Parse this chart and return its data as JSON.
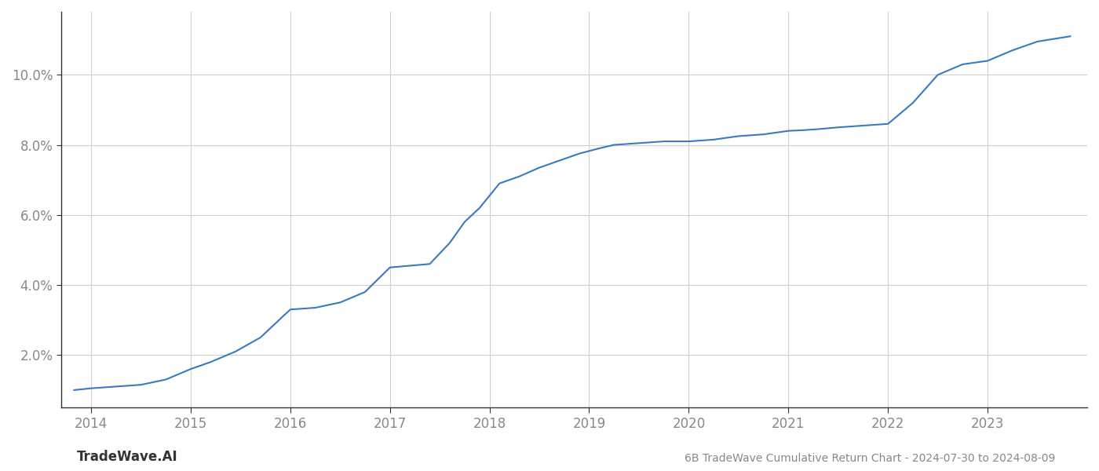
{
  "title": "6B TradeWave Cumulative Return Chart - 2024-07-30 to 2024-08-09",
  "watermark": "TradeWave.AI",
  "line_color": "#3a7abf",
  "background_color": "#ffffff",
  "grid_color": "#d0d0d0",
  "x_values": [
    2013.83,
    2014.0,
    2014.25,
    2014.5,
    2014.75,
    2015.0,
    2015.2,
    2015.45,
    2015.7,
    2016.0,
    2016.25,
    2016.5,
    2016.75,
    2017.0,
    2017.2,
    2017.4,
    2017.6,
    2017.75,
    2017.9,
    2018.1,
    2018.3,
    2018.5,
    2018.7,
    2018.9,
    2019.1,
    2019.25,
    2019.5,
    2019.75,
    2020.0,
    2020.25,
    2020.5,
    2020.75,
    2021.0,
    2021.15,
    2021.3,
    2021.5,
    2021.75,
    2022.0,
    2022.25,
    2022.5,
    2022.75,
    2023.0,
    2023.25,
    2023.5,
    2023.83
  ],
  "y_values": [
    1.0,
    1.05,
    1.1,
    1.15,
    1.3,
    1.6,
    1.8,
    2.1,
    2.5,
    3.3,
    3.35,
    3.5,
    3.8,
    4.5,
    4.55,
    4.6,
    5.2,
    5.8,
    6.2,
    6.9,
    7.1,
    7.35,
    7.55,
    7.75,
    7.9,
    8.0,
    8.05,
    8.1,
    8.1,
    8.15,
    8.25,
    8.3,
    8.4,
    8.42,
    8.45,
    8.5,
    8.55,
    8.6,
    9.2,
    10.0,
    10.3,
    10.4,
    10.7,
    10.95,
    11.1
  ],
  "ylim_bottom": 0.5,
  "ylim_top": 11.8,
  "xlim": [
    2013.7,
    2024.0
  ],
  "yticks": [
    2.0,
    4.0,
    6.0,
    8.0,
    10.0
  ],
  "xticks": [
    2014,
    2015,
    2016,
    2017,
    2018,
    2019,
    2020,
    2021,
    2022,
    2023
  ],
  "line_width": 1.5,
  "title_fontsize": 10,
  "tick_fontsize": 12,
  "watermark_fontsize": 12
}
